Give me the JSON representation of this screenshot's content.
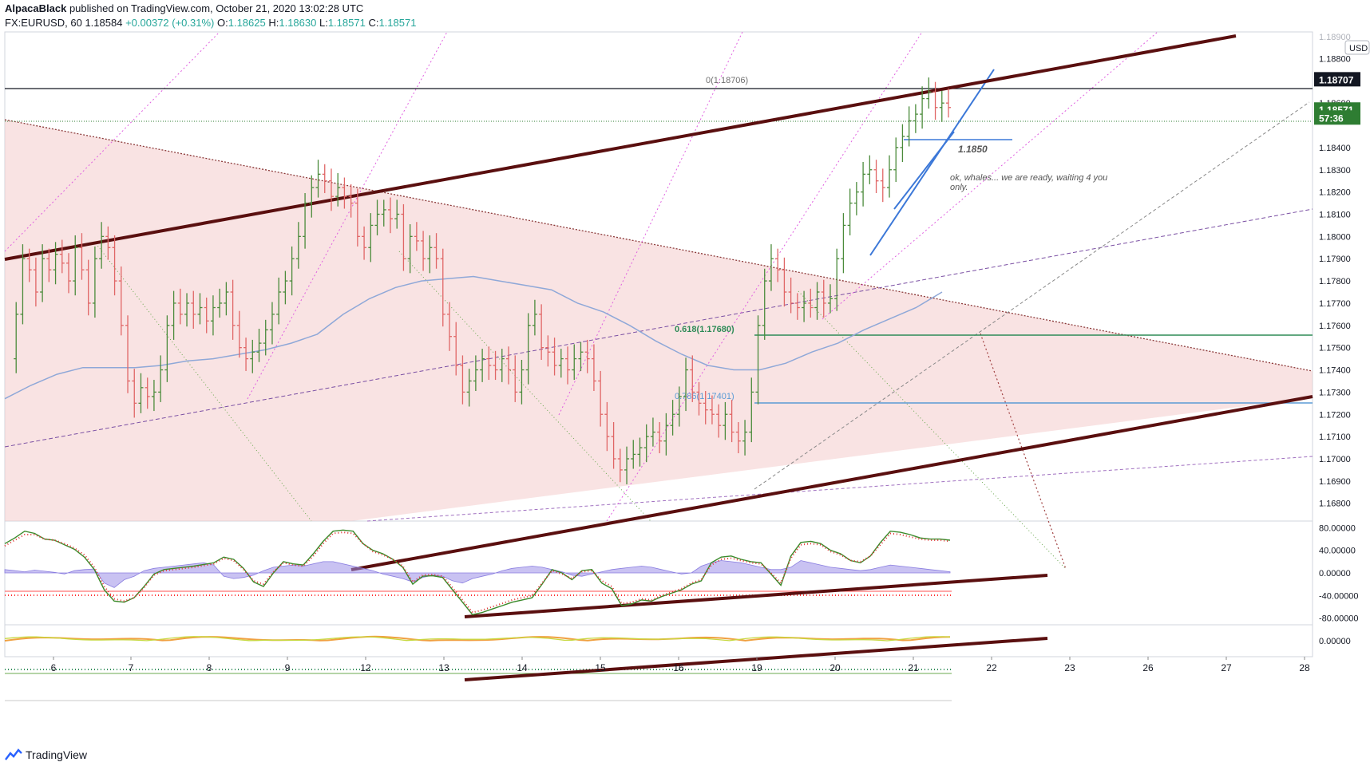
{
  "header": {
    "author": "AlpacaBlack",
    "published": "published on TradingView.com, October 21, 2020 13:02:28 UTC",
    "symbol": "FX:EURUSD, 60",
    "last": "1.18584",
    "change": "+0.00372 (+0.31%)",
    "o_label": "O:",
    "o": "1.18625",
    "h_label": "H:",
    "h": "1.18630",
    "l_label": "L:",
    "l": "1.18571",
    "c_label": "C:",
    "c": "1.18571"
  },
  "footer": {
    "brand": "TradingView"
  },
  "colors": {
    "bull": "#4b8b3b",
    "bear": "#e06666",
    "channel": "#5a0f0f",
    "fib": "#2e8b57",
    "blue": "#3c78d8",
    "ma": "#8fa8d8",
    "wedge": "#f4cccc",
    "magenta": "#e060e0",
    "purple": "#7a4fa3"
  },
  "chart_data": [
    {
      "type": "line",
      "title": "FX:EURUSD, 60",
      "currency": "USD",
      "ylim": [
        1.1672,
        1.1892
      ],
      "y_ticks": [
        "1.18800",
        "1.18600",
        "1.18400",
        "1.18300",
        "1.18200",
        "1.18100",
        "1.18000",
        "1.17900",
        "1.17800",
        "1.17700",
        "1.17600",
        "1.17500",
        "1.17400",
        "1.17300",
        "1.17200",
        "1.17100",
        "1.17000",
        "1.16900",
        "1.16800"
      ],
      "top_partial_tick": "1.18900",
      "x_ticks": [
        "6",
        "7",
        "8",
        "9",
        "12",
        "13",
        "14",
        "15",
        "16",
        "19",
        "20",
        "21",
        "22",
        "23",
        "26",
        "27",
        "28"
      ],
      "price_labels": [
        {
          "value": 1.18707,
          "text": "1.18707",
          "kind": "line"
        },
        {
          "value": 1.18571,
          "text": "1.18571",
          "kind": "last"
        },
        {
          "value": 1.18535,
          "text": "57:36",
          "kind": "countdown"
        }
      ],
      "annotations": [
        {
          "text": "0(1.18706)",
          "value": 1.18706
        },
        {
          "text": "0.618(1.17680)",
          "value": 1.1768
        },
        {
          "text": "0.786(1.17401)",
          "value": 1.17401
        },
        {
          "text": "1.1850",
          "value": 1.185
        },
        {
          "text": "ok, whales... we are ready, waiting 4 you only."
        }
      ],
      "series": [
        {
          "type": "ohlc",
          "values": [
            1.1745,
            1.1765,
            1.179,
            1.1785,
            1.1775,
            1.179,
            1.1785,
            1.1792,
            1.1788,
            1.178,
            1.1795,
            1.1785,
            1.177,
            1.179,
            1.18,
            1.1795,
            1.178,
            1.176,
            1.1735,
            1.1725,
            1.1732,
            1.1728,
            1.173,
            1.174,
            1.176,
            1.177,
            1.1765,
            1.177,
            1.1765,
            1.1768,
            1.1762,
            1.1768,
            1.177,
            1.1775,
            1.176,
            1.175,
            1.1745,
            1.1748,
            1.1752,
            1.1758,
            1.1765,
            1.1775,
            1.178,
            1.179,
            1.18,
            1.1815,
            1.1822,
            1.1828,
            1.1825,
            1.1818,
            1.1822,
            1.1818,
            1.1815,
            1.18,
            1.1795,
            1.1805,
            1.181,
            1.1812,
            1.1808,
            1.181,
            1.179,
            1.18,
            1.1798,
            1.179,
            1.1795,
            1.179,
            1.1765,
            1.1755,
            1.1742,
            1.173,
            1.1735,
            1.174,
            1.1745,
            1.1742,
            1.174,
            1.1745,
            1.174,
            1.173,
            1.174,
            1.176,
            1.1765,
            1.175,
            1.1748,
            1.1742,
            1.1745,
            1.174,
            1.1745,
            1.1748,
            1.1745,
            1.1735,
            1.172,
            1.171,
            1.17,
            1.1695,
            1.17,
            1.1702,
            1.1705,
            1.171,
            1.1712,
            1.1708,
            1.1715,
            1.172,
            1.1728,
            1.174,
            1.173,
            1.1725,
            1.1722,
            1.172,
            1.1715,
            1.172,
            1.1712,
            1.1708,
            1.1712,
            1.173,
            1.176,
            1.178,
            1.179,
            1.1785,
            1.1775,
            1.177,
            1.1768,
            1.177,
            1.1768,
            1.1775,
            1.177,
            1.1772,
            1.179,
            1.1805,
            1.1815,
            1.182,
            1.1828,
            1.183,
            1.1825,
            1.1822,
            1.183,
            1.184,
            1.1845,
            1.1852,
            1.1855,
            1.1862,
            1.1865,
            1.1858,
            1.186,
            1.1858
          ]
        },
        {
          "type": "ma",
          "values": [
            1.1727,
            1.1733,
            1.1738,
            1.1741,
            1.1741,
            1.1741,
            1.1742,
            1.1744,
            1.1745,
            1.1747,
            1.1749,
            1.1752,
            1.1756,
            1.1765,
            1.1772,
            1.1777,
            1.178,
            1.1781,
            1.1782,
            1.178,
            1.1778,
            1.1776,
            1.177,
            1.1766,
            1.176,
            1.1753,
            1.1747,
            1.1742,
            1.174,
            1.174,
            1.1743,
            1.1748,
            1.1752,
            1.1758,
            1.1763,
            1.1768,
            1.1775
          ]
        }
      ]
    },
    {
      "type": "line",
      "y_ticks": [
        "80.00000",
        "40.00000",
        "0.00000",
        "-40.00000",
        "-80.00000"
      ],
      "ylim": [
        -92,
        92
      ],
      "levels": [
        56,
        -56
      ],
      "series": [
        {
          "name": "k",
          "values": [
            52,
            62,
            74,
            70,
            60,
            58,
            50,
            42,
            28,
            6,
            -30,
            -50,
            -52,
            -44,
            -24,
            -2,
            6,
            8,
            10,
            12,
            15,
            18,
            28,
            24,
            8,
            -16,
            -24,
            0,
            20,
            16,
            14,
            34,
            56,
            74,
            76,
            74,
            52,
            40,
            34,
            24,
            10,
            -20,
            -6,
            -5,
            -8,
            -30,
            -52,
            -74,
            -70,
            -64,
            -58,
            -52,
            -48,
            -44,
            -20,
            6,
            0,
            -12,
            4,
            6,
            -18,
            -28,
            -58,
            -55,
            -48,
            -50,
            -42,
            -36,
            -30,
            -20,
            -14,
            18,
            28,
            30,
            24,
            20,
            18,
            -2,
            -22,
            30,
            54,
            56,
            52,
            40,
            34,
            22,
            18,
            30,
            54,
            74,
            72,
            68,
            62,
            60,
            60,
            58
          ]
        },
        {
          "name": "d",
          "values": [
            48,
            58,
            68,
            68,
            60,
            58,
            52,
            44,
            32,
            10,
            -24,
            -46,
            -50,
            -44,
            -26,
            -4,
            4,
            6,
            8,
            10,
            13,
            16,
            26,
            22,
            6,
            -14,
            -20,
            2,
            18,
            14,
            12,
            30,
            52,
            70,
            72,
            70,
            52,
            38,
            32,
            24,
            12,
            -16,
            -4,
            -3,
            -6,
            -26,
            -48,
            -70,
            -66,
            -60,
            -54,
            -48,
            -44,
            -40,
            -18,
            4,
            -2,
            -10,
            2,
            4,
            -14,
            -24,
            -54,
            -52,
            -46,
            -48,
            -40,
            -34,
            -28,
            -18,
            -12,
            14,
            24,
            26,
            22,
            18,
            16,
            0,
            -18,
            26,
            50,
            52,
            50,
            38,
            32,
            22,
            20,
            30,
            50,
            70,
            68,
            64,
            60,
            58,
            58,
            56
          ]
        },
        {
          "name": "hist",
          "values": [
            6,
            4,
            2,
            5,
            3,
            1,
            -2,
            4,
            6,
            7,
            -18,
            -26,
            -12,
            -6,
            4,
            8,
            10,
            12,
            14,
            16,
            18,
            14,
            -6,
            -10,
            -8,
            -4,
            4,
            10,
            12,
            14,
            12,
            16,
            20,
            20,
            16,
            12,
            8,
            4,
            -2,
            -6,
            -10,
            -16,
            -8,
            -4,
            -6,
            -14,
            -18,
            -10,
            -6,
            -2,
            4,
            8,
            10,
            12,
            10,
            6,
            2,
            -4,
            -6,
            -2,
            2,
            6,
            8,
            10,
            12,
            10,
            6,
            2,
            -2,
            0,
            12,
            18,
            22,
            20,
            18,
            14,
            10,
            6,
            6,
            10,
            22,
            18,
            14,
            10,
            8,
            6,
            4,
            6,
            10,
            14,
            12,
            10,
            8,
            6,
            4,
            2
          ]
        }
      ]
    },
    {
      "type": "area",
      "y_ticks": [
        "0.00000"
      ],
      "ylim": [
        -1,
        1
      ]
    }
  ]
}
